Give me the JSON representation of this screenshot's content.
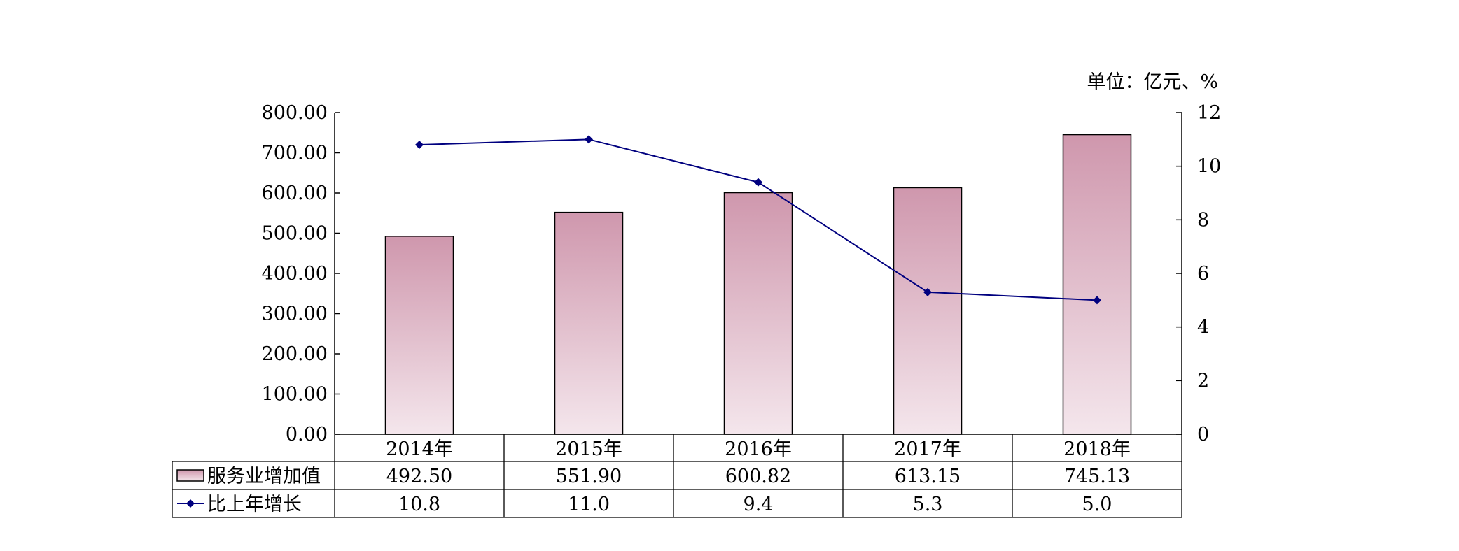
{
  "chart_data": {
    "type": "bar+line",
    "unit_label": "单位：亿元、%",
    "categories": [
      "2014年",
      "2015年",
      "2016年",
      "2017年",
      "2018年"
    ],
    "series": [
      {
        "name": "服务业增加值",
        "kind": "bar",
        "axis": "left",
        "values": [
          492.5,
          551.9,
          600.82,
          613.15,
          745.13
        ],
        "labels": [
          "492.50",
          "551.90",
          "600.82",
          "613.15",
          "745.13"
        ]
      },
      {
        "name": "比上年增长",
        "kind": "line",
        "axis": "right",
        "values": [
          10.8,
          11.0,
          9.4,
          5.3,
          5.0
        ],
        "labels": [
          "10.8",
          "11.0",
          "9.4",
          "5.3",
          "5.0"
        ]
      }
    ],
    "y_left": {
      "min": 0,
      "max": 800,
      "step": 100,
      "ticks": [
        "0.00",
        "100.00",
        "200.00",
        "300.00",
        "400.00",
        "500.00",
        "600.00",
        "700.00",
        "800.00"
      ]
    },
    "y_right": {
      "min": 0,
      "max": 12,
      "step": 2,
      "ticks": [
        "0",
        "2",
        "4",
        "6",
        "8",
        "10",
        "12"
      ]
    },
    "grid": false,
    "legend": "data-table",
    "colors": {
      "bar_top": "#cf97ad",
      "bar_bottom": "#f4e6ec",
      "line": "#00007f"
    }
  }
}
